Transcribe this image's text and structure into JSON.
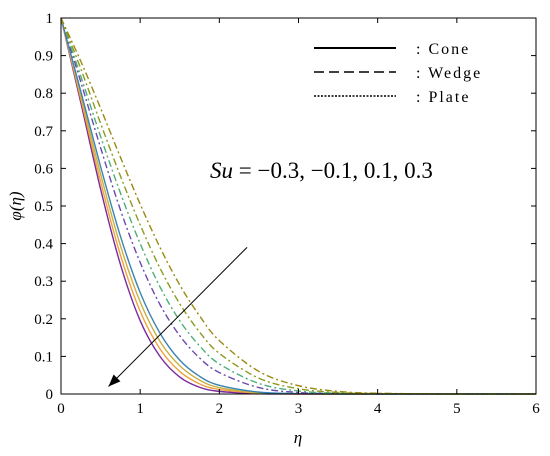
{
  "chart_data": {
    "type": "line",
    "xlabel": "η",
    "ylabel": "φ(η)",
    "xlim": [
      0,
      6
    ],
    "ylim": [
      0,
      1
    ],
    "xticks": [
      0,
      1,
      2,
      3,
      4,
      5,
      6
    ],
    "yticks": [
      0,
      0.1,
      0.2,
      0.3,
      0.4,
      0.5,
      0.6,
      0.7,
      0.8,
      0.9,
      1
    ],
    "grid": false,
    "legend": {
      "placement": "top-right",
      "entries": [
        {
          "label": ": Cone",
          "style": "solid"
        },
        {
          "label": ": Wedge",
          "style": "dashed"
        },
        {
          "label": ": Plate",
          "style": "dotted"
        }
      ]
    },
    "annotation": {
      "text": "Su = −0.3, −0.1, 0.1, 0.3",
      "variable": "Su",
      "values": "= −0.3, −0.1, 0.1, 0.3",
      "arrow_from": [
        2.35,
        0.39
      ],
      "arrow_to": [
        0.6,
        0.02
      ]
    },
    "colors": [
      "#7a2aa0",
      "#f0a23c",
      "#c8b043",
      "#3a84b3",
      "#6b4ab0",
      "#4caf7a",
      "#8c9a1f",
      "#9a8a12"
    ],
    "series": [
      {
        "style": "solid",
        "color": "#7a2aa0",
        "x": [
          0,
          0.25,
          0.5,
          0.75,
          1,
          1.25,
          1.5,
          1.75,
          2,
          2.5,
          3,
          3.5,
          4,
          5,
          6
        ],
        "y": [
          1,
          0.775,
          0.545,
          0.345,
          0.195,
          0.1,
          0.045,
          0.018,
          0.007,
          0.001,
          0,
          0,
          0,
          0,
          0
        ]
      },
      {
        "style": "solid",
        "color": "#f0a23c",
        "x": [
          0,
          0.25,
          0.5,
          0.75,
          1,
          1.25,
          1.5,
          1.75,
          2,
          2.5,
          3,
          3.5,
          4,
          5,
          6
        ],
        "y": [
          1,
          0.785,
          0.565,
          0.37,
          0.22,
          0.12,
          0.06,
          0.027,
          0.012,
          0.002,
          0,
          0,
          0,
          0,
          0
        ]
      },
      {
        "style": "solid",
        "color": "#c8b043",
        "x": [
          0,
          0.25,
          0.5,
          0.75,
          1,
          1.25,
          1.5,
          1.75,
          2,
          2.5,
          3,
          3.5,
          4,
          5,
          6
        ],
        "y": [
          1,
          0.795,
          0.585,
          0.395,
          0.245,
          0.14,
          0.075,
          0.037,
          0.017,
          0.003,
          0.001,
          0,
          0,
          0,
          0
        ]
      },
      {
        "style": "solid",
        "color": "#3a84b3",
        "x": [
          0,
          0.25,
          0.5,
          0.75,
          1,
          1.25,
          1.5,
          1.75,
          2,
          2.5,
          3,
          3.5,
          4,
          5,
          6
        ],
        "y": [
          1,
          0.805,
          0.605,
          0.42,
          0.27,
          0.162,
          0.09,
          0.047,
          0.023,
          0.005,
          0.001,
          0,
          0,
          0,
          0
        ]
      },
      {
        "style": "dashdot",
        "color": "#6b4ab0",
        "x": [
          0,
          0.25,
          0.5,
          0.75,
          1,
          1.25,
          1.5,
          1.75,
          2,
          2.5,
          3,
          3.5,
          4,
          5,
          6
        ],
        "y": [
          1,
          0.83,
          0.655,
          0.49,
          0.35,
          0.238,
          0.155,
          0.096,
          0.057,
          0.017,
          0.004,
          0.001,
          0,
          0,
          0
        ]
      },
      {
        "style": "dashdot",
        "color": "#4caf7a",
        "x": [
          0,
          0.25,
          0.5,
          0.75,
          1,
          1.25,
          1.5,
          1.75,
          2,
          2.5,
          3,
          3.5,
          4,
          5,
          6
        ],
        "y": [
          1,
          0.845,
          0.685,
          0.535,
          0.4,
          0.285,
          0.195,
          0.128,
          0.08,
          0.028,
          0.008,
          0.002,
          0,
          0,
          0
        ]
      },
      {
        "style": "dashdot",
        "color": "#8c9a1f",
        "x": [
          0,
          0.25,
          0.5,
          0.75,
          1,
          1.25,
          1.5,
          1.75,
          2,
          2.5,
          3,
          3.5,
          4,
          5,
          6
        ],
        "y": [
          1,
          0.865,
          0.72,
          0.58,
          0.45,
          0.335,
          0.24,
          0.165,
          0.108,
          0.042,
          0.014,
          0.004,
          0.001,
          0,
          0
        ]
      },
      {
        "style": "dashdot",
        "color": "#9a8a12",
        "x": [
          0,
          0.25,
          0.5,
          0.75,
          1,
          1.25,
          1.5,
          1.75,
          2,
          2.5,
          3,
          3.5,
          4,
          5,
          6
        ],
        "y": [
          1,
          0.885,
          0.76,
          0.63,
          0.505,
          0.39,
          0.29,
          0.208,
          0.142,
          0.06,
          0.022,
          0.007,
          0.002,
          0,
          0
        ]
      }
    ]
  }
}
